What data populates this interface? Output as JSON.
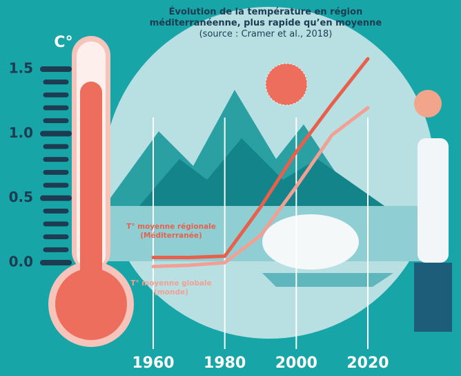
{
  "chart_data": {
    "type": "line",
    "title": "Évolution de la température en région méditerranéenne, plus rapide qu’en moyenne",
    "source": "(source : Cramer et al., 2018)",
    "y_unit": "C°",
    "x": [
      1960,
      1970,
      1980,
      1990,
      2000,
      2010,
      2020
    ],
    "series": [
      {
        "name": "T° moyenne régionale (Méditerranée)",
        "color": "#e8604c",
        "values": [
          0.04,
          0.04,
          0.05,
          0.43,
          0.86,
          1.23,
          1.58
        ]
      },
      {
        "name": "T° moyenne globale (monde)",
        "color": "#f2a093",
        "values": [
          -0.03,
          -0.02,
          0,
          0.21,
          0.59,
          0.99,
          1.2
        ]
      }
    ],
    "xlim": [
      1960,
      2020
    ],
    "xticks": [
      1960,
      1980,
      2000,
      2020
    ],
    "ylim": [
      0,
      1.5
    ],
    "yticks": [
      {
        "value": 0,
        "label": "0.0"
      },
      0.5,
      {
        "value": 1,
        "label": "1.0"
      },
      1.5
    ]
  }
}
